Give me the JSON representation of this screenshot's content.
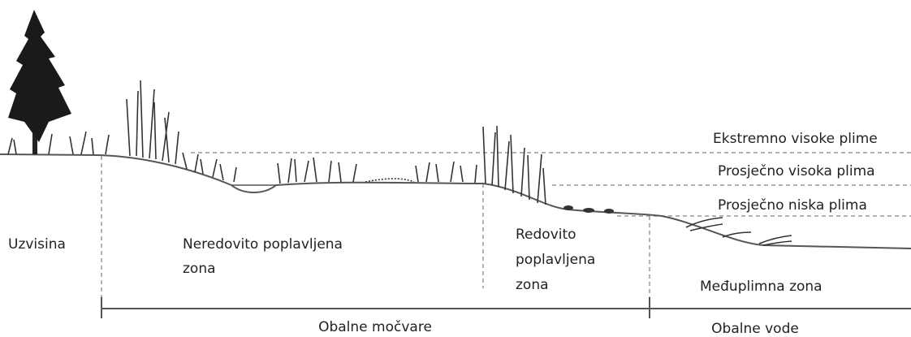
{
  "tide_levels": [
    "Ekstremno visoke plime",
    "Prosječno visoka plima",
    "Prosječno niska plima"
  ],
  "zones": {
    "upland": "Uzvisina",
    "irregularly_flooded": [
      "Neredovito poplavljena",
      "zona"
    ],
    "regularly_flooded": [
      "Redovito",
      "poplavljena",
      "zona"
    ],
    "intertidal": "Međuplimna zona"
  },
  "regions": [
    "Obalne močvare",
    "Obalne vode"
  ]
}
